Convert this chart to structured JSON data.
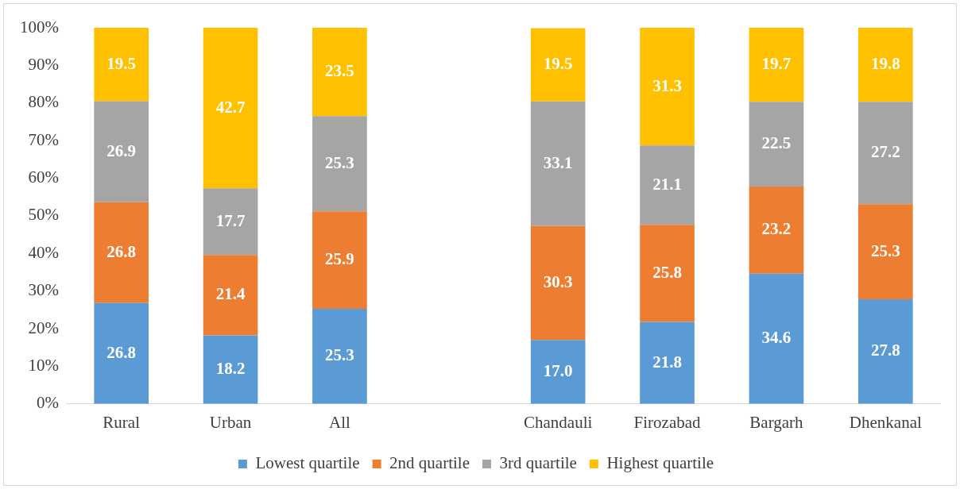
{
  "chart_data": {
    "type": "bar",
    "stacked": true,
    "categories": [
      "Rural",
      "Urban",
      "All",
      null,
      "Chandauli",
      "Firozabad",
      "Bargarh",
      "Dhenkanal"
    ],
    "series": [
      {
        "name": "Lowest quartile",
        "color": "#5b9bd5",
        "values": [
          26.8,
          18.2,
          25.3,
          null,
          17.0,
          21.8,
          34.6,
          27.8
        ],
        "value_labels": [
          "26.8",
          "18.2",
          "25.3",
          null,
          "17.0",
          "21.8",
          "34.6",
          "27.8"
        ]
      },
      {
        "name": "2nd quartile",
        "color": "#ed7d31",
        "values": [
          26.8,
          21.4,
          25.9,
          null,
          30.3,
          25.8,
          23.2,
          25.3
        ],
        "value_labels": [
          "26.8",
          "21.4",
          "25.9",
          null,
          "30.3",
          "25.8",
          "23.2",
          "25.3"
        ]
      },
      {
        "name": "3rd quartile",
        "color": "#a5a5a5",
        "values": [
          26.9,
          17.7,
          25.3,
          null,
          33.1,
          21.1,
          22.5,
          27.2
        ],
        "value_labels": [
          "26.9",
          "17.7",
          "25.3",
          null,
          "33.1",
          "21.1",
          "22.5",
          "27.2"
        ]
      },
      {
        "name": "Highest quartile",
        "color": "#ffc000",
        "values": [
          19.5,
          42.7,
          23.5,
          null,
          19.5,
          31.3,
          19.7,
          19.8
        ],
        "value_labels": [
          "19.5",
          "42.7",
          "23.5",
          null,
          "19.5",
          "31.3",
          "19.7",
          "19.8"
        ]
      }
    ],
    "ylim": [
      0,
      100
    ],
    "yticks": [
      {
        "value": 0,
        "label": "0%"
      },
      {
        "value": 10,
        "label": "10%"
      },
      {
        "value": 20,
        "label": "20%"
      },
      {
        "value": 30,
        "label": "30%"
      },
      {
        "value": 40,
        "label": "40%"
      },
      {
        "value": 50,
        "label": "50%"
      },
      {
        "value": 60,
        "label": "60%"
      },
      {
        "value": 70,
        "label": "70%"
      },
      {
        "value": 80,
        "label": "80%"
      },
      {
        "value": 90,
        "label": "90%"
      },
      {
        "value": 100,
        "label": "100%"
      }
    ],
    "grid": false,
    "legend": "bottom"
  }
}
